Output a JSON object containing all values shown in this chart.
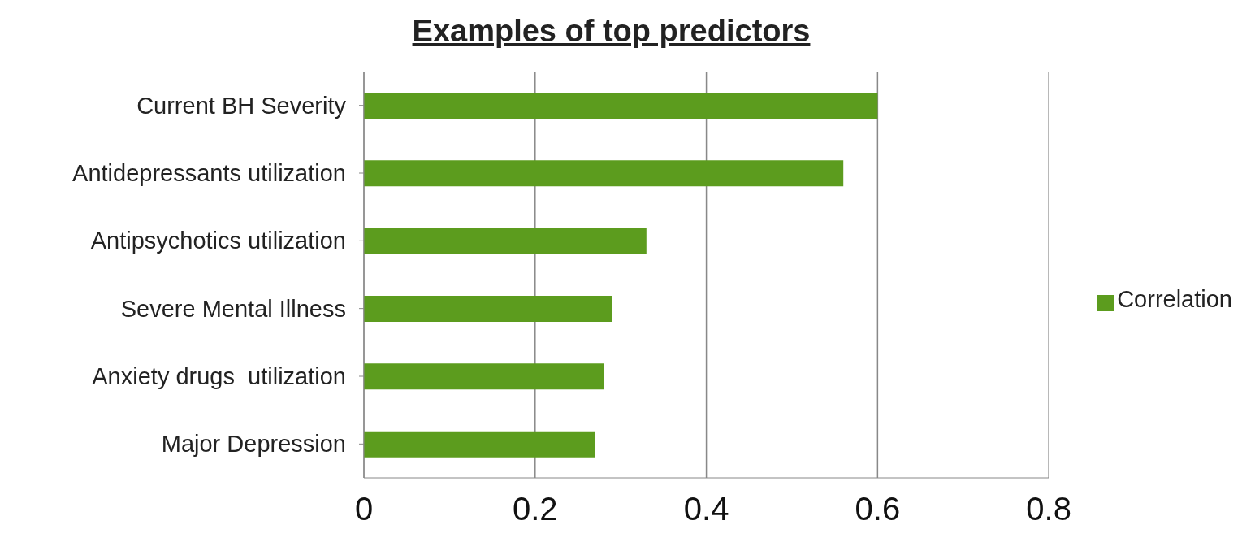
{
  "chart_data": {
    "type": "bar",
    "orientation": "horizontal",
    "title": "Examples of top predictors",
    "categories": [
      "Current BH Severity",
      "Antidepressants utilization",
      "Antipsychotics utilization",
      "Severe Mental Illness",
      "Anxiety drugs  utilization",
      "Major Depression"
    ],
    "series": [
      {
        "name": "Correlation",
        "color": "#5c9c1e",
        "values": [
          0.6,
          0.56,
          0.33,
          0.29,
          0.28,
          0.27
        ]
      }
    ],
    "xlim": [
      0,
      0.8
    ],
    "xticks": [
      0,
      0.2,
      0.4,
      0.6,
      0.8
    ],
    "grid": "x",
    "legend": "right"
  }
}
